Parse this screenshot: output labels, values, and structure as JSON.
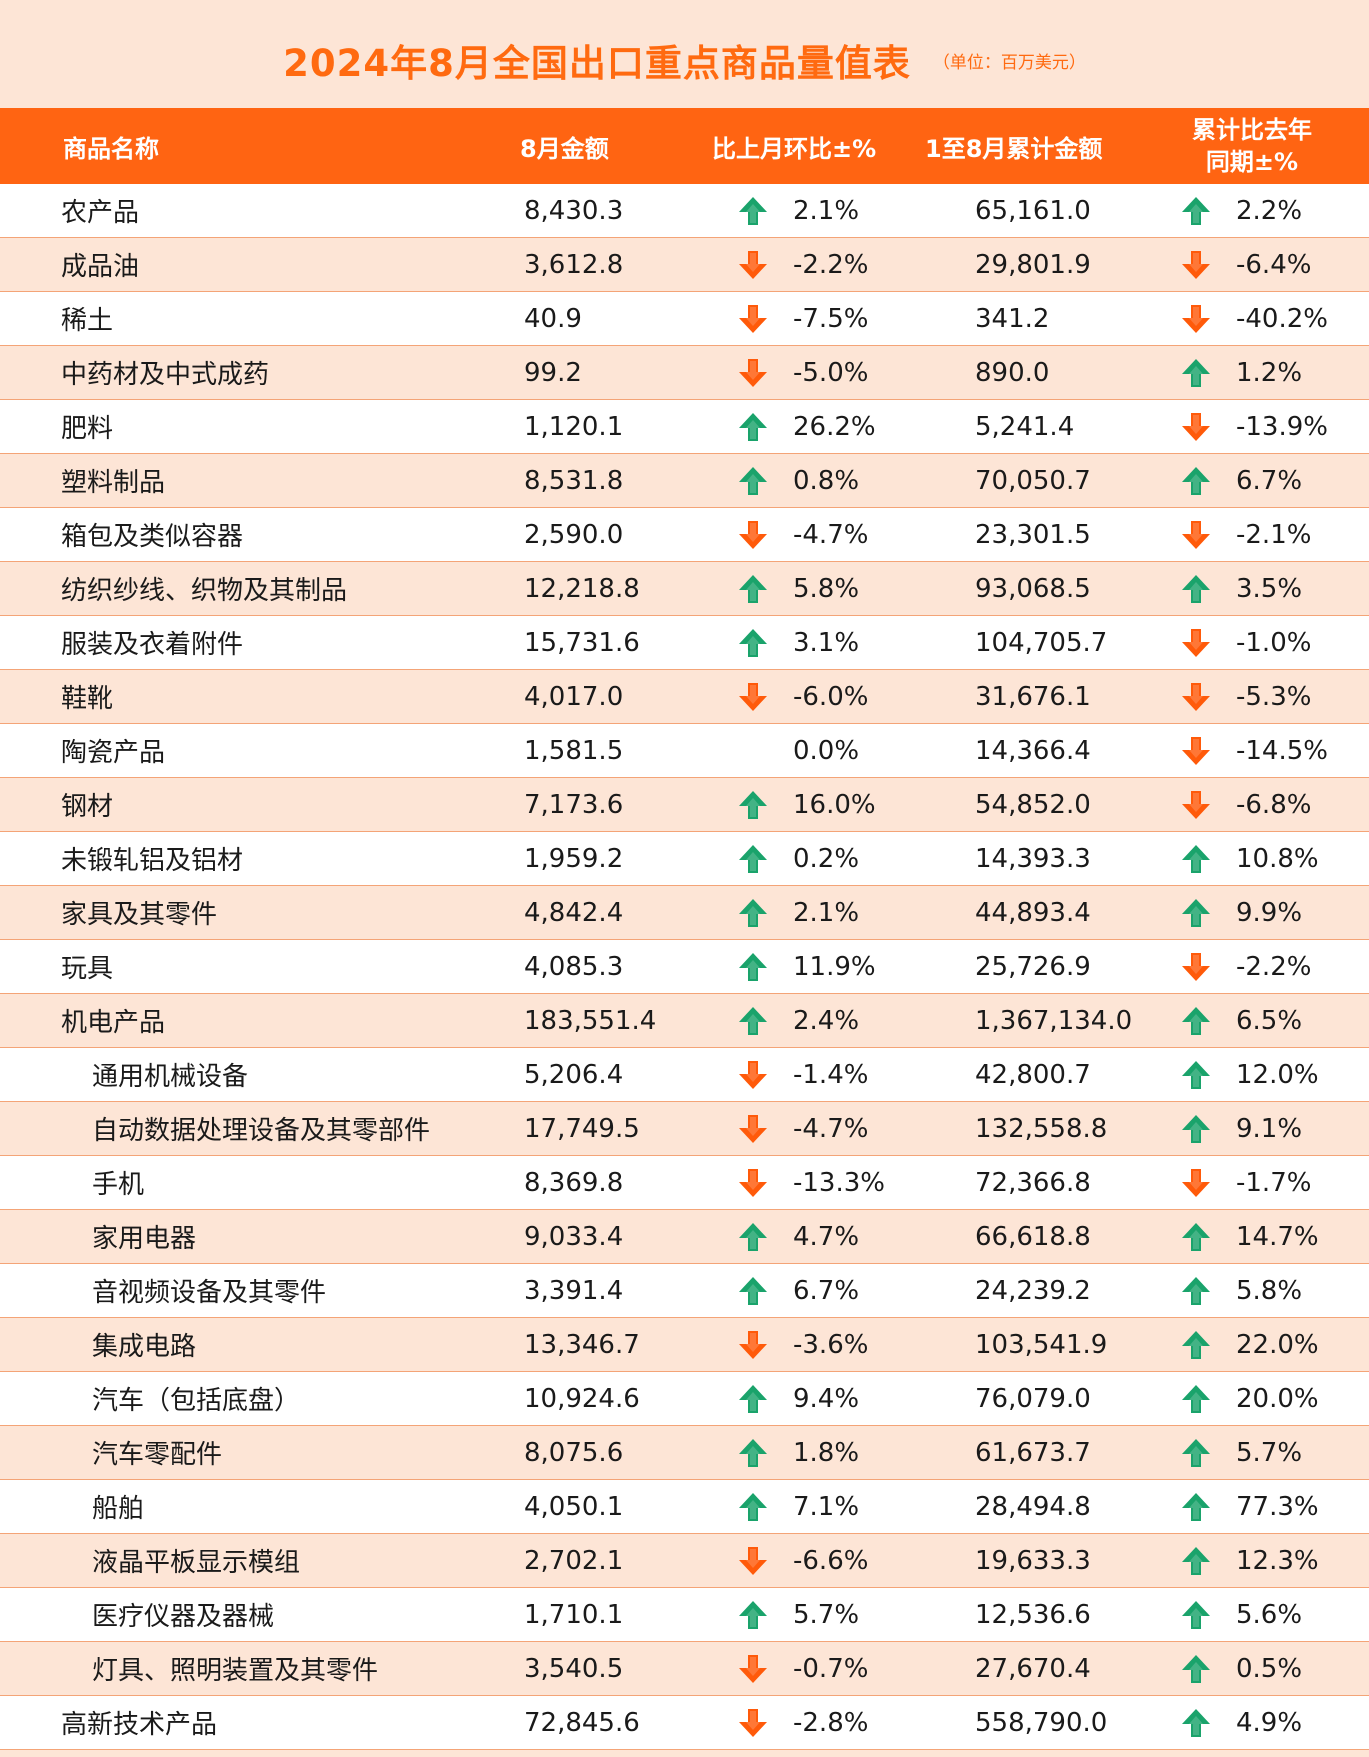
{
  "title": "2024年8月全国出口重点商品量值表",
  "unit": "（单位：百万美元）",
  "headers": {
    "name": "商品名称",
    "amount": "8月金额",
    "mom": "比上月环比±%",
    "cumulative": "1至8月累计金额",
    "yoy_line1": "累计比去年",
    "yoy_line2": "同期±%"
  },
  "colors": {
    "up": "#1aa36b",
    "down": "#ff5a0a",
    "accent": "#ff6412",
    "band": "#fde5d6"
  },
  "rows": [
    {
      "name": "农产品",
      "amount": "8,430.3",
      "mom": "2.1%",
      "mom_dir": "up",
      "cum": "65,161.0",
      "yoy": "2.2%",
      "yoy_dir": "up",
      "sub": false
    },
    {
      "name": "成品油",
      "amount": "3,612.8",
      "mom": "-2.2%",
      "mom_dir": "down",
      "cum": "29,801.9",
      "yoy": "-6.4%",
      "yoy_dir": "down",
      "sub": false
    },
    {
      "name": "稀土",
      "amount": "40.9",
      "mom": "-7.5%",
      "mom_dir": "down",
      "cum": "341.2",
      "yoy": "-40.2%",
      "yoy_dir": "down",
      "sub": false
    },
    {
      "name": "中药材及中式成药",
      "amount": "99.2",
      "mom": "-5.0%",
      "mom_dir": "down",
      "cum": "890.0",
      "yoy": "1.2%",
      "yoy_dir": "up",
      "sub": false
    },
    {
      "name": "肥料",
      "amount": "1,120.1",
      "mom": "26.2%",
      "mom_dir": "up",
      "cum": "5,241.4",
      "yoy": "-13.9%",
      "yoy_dir": "down",
      "sub": false
    },
    {
      "name": "塑料制品",
      "amount": "8,531.8",
      "mom": "0.8%",
      "mom_dir": "up",
      "cum": "70,050.7",
      "yoy": "6.7%",
      "yoy_dir": "up",
      "sub": false
    },
    {
      "name": "箱包及类似容器",
      "amount": "2,590.0",
      "mom": "-4.7%",
      "mom_dir": "down",
      "cum": "23,301.5",
      "yoy": "-2.1%",
      "yoy_dir": "down",
      "sub": false
    },
    {
      "name": "纺织纱线、织物及其制品",
      "amount": "12,218.8",
      "mom": "5.8%",
      "mom_dir": "up",
      "cum": "93,068.5",
      "yoy": "3.5%",
      "yoy_dir": "up",
      "sub": false
    },
    {
      "name": "服装及衣着附件",
      "amount": "15,731.6",
      "mom": "3.1%",
      "mom_dir": "up",
      "cum": "104,705.7",
      "yoy": "-1.0%",
      "yoy_dir": "down",
      "sub": false
    },
    {
      "name": "鞋靴",
      "amount": "4,017.0",
      "mom": "-6.0%",
      "mom_dir": "down",
      "cum": "31,676.1",
      "yoy": "-5.3%",
      "yoy_dir": "down",
      "sub": false
    },
    {
      "name": "陶瓷产品",
      "amount": "1,581.5",
      "mom": "0.0%",
      "mom_dir": "none",
      "cum": "14,366.4",
      "yoy": "-14.5%",
      "yoy_dir": "down",
      "sub": false
    },
    {
      "name": "钢材",
      "amount": "7,173.6",
      "mom": "16.0%",
      "mom_dir": "up",
      "cum": "54,852.0",
      "yoy": "-6.8%",
      "yoy_dir": "down",
      "sub": false
    },
    {
      "name": "未锻轧铝及铝材",
      "amount": "1,959.2",
      "mom": "0.2%",
      "mom_dir": "up",
      "cum": "14,393.3",
      "yoy": "10.8%",
      "yoy_dir": "up",
      "sub": false
    },
    {
      "name": "家具及其零件",
      "amount": "4,842.4",
      "mom": "2.1%",
      "mom_dir": "up",
      "cum": "44,893.4",
      "yoy": "9.9%",
      "yoy_dir": "up",
      "sub": false
    },
    {
      "name": "玩具",
      "amount": "4,085.3",
      "mom": "11.9%",
      "mom_dir": "up",
      "cum": "25,726.9",
      "yoy": "-2.2%",
      "yoy_dir": "down",
      "sub": false
    },
    {
      "name": "机电产品",
      "amount": "183,551.4",
      "mom": "2.4%",
      "mom_dir": "up",
      "cum": "1,367,134.0",
      "yoy": "6.5%",
      "yoy_dir": "up",
      "sub": false
    },
    {
      "name": "通用机械设备",
      "amount": "5,206.4",
      "mom": "-1.4%",
      "mom_dir": "down",
      "cum": "42,800.7",
      "yoy": "12.0%",
      "yoy_dir": "up",
      "sub": true
    },
    {
      "name": "自动数据处理设备及其零部件",
      "amount": "17,749.5",
      "mom": "-4.7%",
      "mom_dir": "down",
      "cum": "132,558.8",
      "yoy": "9.1%",
      "yoy_dir": "up",
      "sub": true
    },
    {
      "name": "手机",
      "amount": "8,369.8",
      "mom": "-13.3%",
      "mom_dir": "down",
      "cum": "72,366.8",
      "yoy": "-1.7%",
      "yoy_dir": "down",
      "sub": true
    },
    {
      "name": "家用电器",
      "amount": "9,033.4",
      "mom": "4.7%",
      "mom_dir": "up",
      "cum": "66,618.8",
      "yoy": "14.7%",
      "yoy_dir": "up",
      "sub": true
    },
    {
      "name": "音视频设备及其零件",
      "amount": "3,391.4",
      "mom": "6.7%",
      "mom_dir": "up",
      "cum": "24,239.2",
      "yoy": "5.8%",
      "yoy_dir": "up",
      "sub": true
    },
    {
      "name": "集成电路",
      "amount": "13,346.7",
      "mom": "-3.6%",
      "mom_dir": "down",
      "cum": "103,541.9",
      "yoy": "22.0%",
      "yoy_dir": "up",
      "sub": true
    },
    {
      "name": "汽车（包括底盘）",
      "amount": "10,924.6",
      "mom": "9.4%",
      "mom_dir": "up",
      "cum": "76,079.0",
      "yoy": "20.0%",
      "yoy_dir": "up",
      "sub": true
    },
    {
      "name": "汽车零配件",
      "amount": "8,075.6",
      "mom": "1.8%",
      "mom_dir": "up",
      "cum": "61,673.7",
      "yoy": "5.7%",
      "yoy_dir": "up",
      "sub": true
    },
    {
      "name": "船舶",
      "amount": "4,050.1",
      "mom": "7.1%",
      "mom_dir": "up",
      "cum": "28,494.8",
      "yoy": "77.3%",
      "yoy_dir": "up",
      "sub": true
    },
    {
      "name": "液晶平板显示模组",
      "amount": "2,702.1",
      "mom": "-6.6%",
      "mom_dir": "down",
      "cum": "19,633.3",
      "yoy": "12.3%",
      "yoy_dir": "up",
      "sub": true
    },
    {
      "name": "医疗仪器及器械",
      "amount": "1,710.1",
      "mom": "5.7%",
      "mom_dir": "up",
      "cum": "12,536.6",
      "yoy": "5.6%",
      "yoy_dir": "up",
      "sub": true
    },
    {
      "name": "灯具、照明装置及其零件",
      "amount": "3,540.5",
      "mom": "-0.7%",
      "mom_dir": "down",
      "cum": "27,670.4",
      "yoy": "0.5%",
      "yoy_dir": "up",
      "sub": true
    },
    {
      "name": "高新技术产品",
      "amount": "72,845.6",
      "mom": "-2.8%",
      "mom_dir": "down",
      "cum": "558,790.0",
      "yoy": "4.9%",
      "yoy_dir": "up",
      "sub": false
    }
  ]
}
